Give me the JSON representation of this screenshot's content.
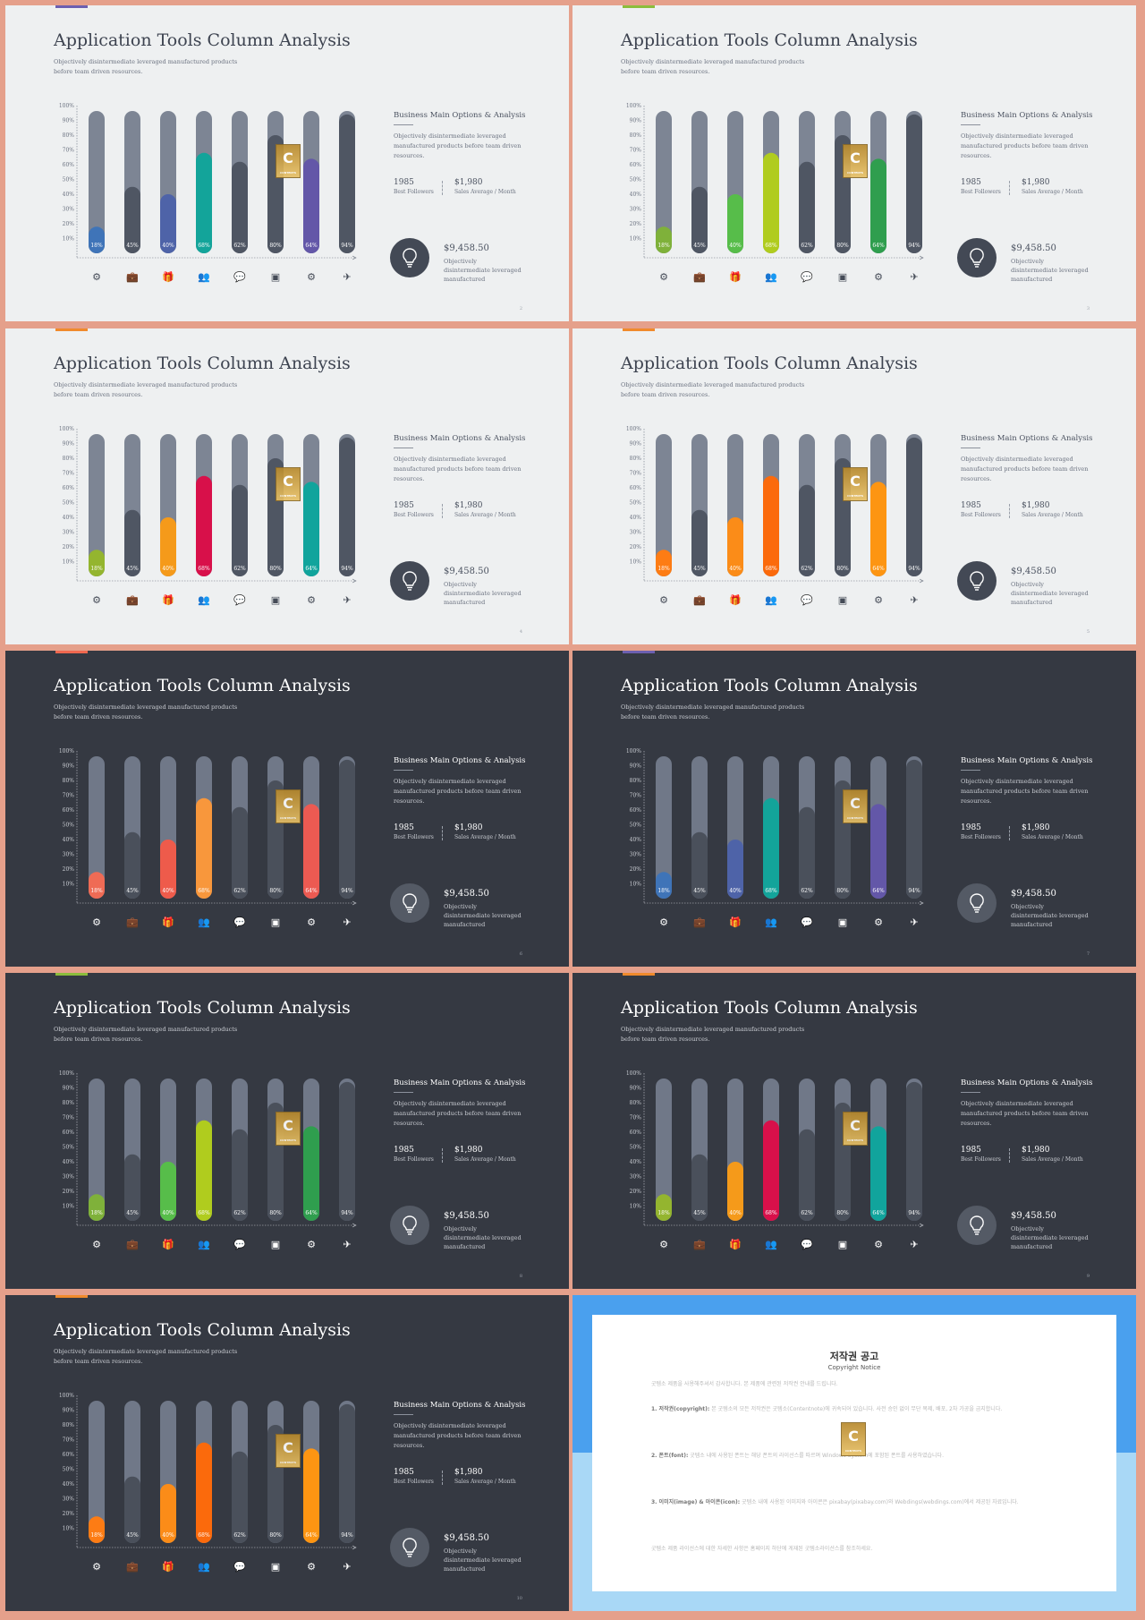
{
  "slide": {
    "title": "Application Tools Column Analysis",
    "subtitle": "Objectively disintermediate leveraged manufactured products before team driven resources.",
    "panel_title": "Business Main Options & Analysis",
    "panel_desc": "Objectively disintermediate leveraged manufactured products before team  driven resources.",
    "stat1_value": "1985",
    "stat1_label": "Best Followers",
    "stat2_value": "$1,980",
    "stat2_label": "Sales Average / Month",
    "money_value": "$9,458.50",
    "money_desc": "Objectively disintermediate leveraged manufactured",
    "watermark_letter": "C",
    "watermark_text": "CONTENTS"
  },
  "chart_data": {
    "type": "bar",
    "y_ticks": [
      "10%",
      "20%",
      "30%",
      "40%",
      "50%",
      "60%",
      "70%",
      "80%",
      "90%",
      "100%"
    ],
    "ylim": [
      0,
      100
    ],
    "categories": [
      "settings",
      "briefcase",
      "gift",
      "users",
      "comments",
      "picture",
      "gear",
      "plane"
    ],
    "values": [
      18,
      45,
      40,
      68,
      62,
      80,
      64,
      94
    ],
    "value_labels": [
      "18%",
      "45%",
      "40%",
      "68%",
      "62%",
      "80%",
      "64%",
      "94%"
    ]
  },
  "icons": [
    "cogs-icon",
    "briefcase-icon",
    "gift-icon",
    "users-icon",
    "comments-icon",
    "picture-icon",
    "gear-icon",
    "plane-icon"
  ],
  "icon_glyphs": [
    "⚙",
    "💼",
    "🎁",
    "👥",
    "💬",
    "▣",
    "⚙",
    "✈"
  ],
  "slides": [
    {
      "theme": "light",
      "accent": "#6c5fb0",
      "page": "2",
      "highlights": {
        "0": "#3f74b8",
        "2": "#4e63a8",
        "3": "#13a49a",
        "6": "#6357a8"
      }
    },
    {
      "theme": "light",
      "accent": "#8bbd3c",
      "page": "3",
      "highlights": {
        "0": "#7fb13a",
        "2": "#57bd4a",
        "3": "#b0cc1e",
        "6": "#2f9e4e"
      }
    },
    {
      "theme": "light",
      "accent": "#f08a2c",
      "page": "4",
      "highlights": {
        "0": "#94b52f",
        "2": "#f59a1a",
        "3": "#d8104a",
        "6": "#11a49c"
      }
    },
    {
      "theme": "light",
      "accent": "#f08a2c",
      "page": "5",
      "highlights": {
        "0": "#fd7c14",
        "2": "#fb8c18",
        "3": "#fb6a0c",
        "6": "#fd9512"
      }
    },
    {
      "theme": "dark",
      "accent": "#f0684f",
      "page": "6",
      "highlights": {
        "0": "#ef6b55",
        "2": "#ee5b4b",
        "3": "#f8973c",
        "6": "#ec5a52"
      }
    },
    {
      "theme": "dark",
      "accent": "#6c5fb0",
      "page": "7",
      "highlights": {
        "0": "#3f74b8",
        "2": "#4e63a8",
        "3": "#13a49a",
        "6": "#6357a8"
      }
    },
    {
      "theme": "dark",
      "accent": "#8bbd3c",
      "page": "8",
      "highlights": {
        "0": "#7fb13a",
        "2": "#57bd4a",
        "3": "#b0cc1e",
        "6": "#2f9e4e"
      }
    },
    {
      "theme": "dark",
      "accent": "#f08a2c",
      "page": "9",
      "highlights": {
        "0": "#94b52f",
        "2": "#f59a1a",
        "3": "#d8104a",
        "6": "#11a49c"
      }
    },
    {
      "theme": "dark",
      "accent": "#f08a2c",
      "page": "10",
      "highlights": {
        "0": "#fd7c14",
        "2": "#fb8c18",
        "3": "#fb6a0c",
        "6": "#fd9512"
      }
    }
  ],
  "copyright": {
    "title": "저작권 공고",
    "subtitle": "Copyright Notice",
    "intro": "굿템소 제품을 사용해주셔서 감사합니다. 본 제품에 관련된 저작권 안내를 드립니다.",
    "item1_title": "1. 저작권(copyright):",
    "item1": "본 굿템소의 모든 저작권은 굿템소(Contentnote)에 귀속되어 있습니다. 사전 승인 없이 무단 복제, 배포, 2차 가공을 금지합니다.",
    "item2_title": "2. 폰트(font):",
    "item2": "굿템소 내에 사용된 폰트는 해당 폰트의 라이선스를 따르며 Windows System에 포함된 폰트를 사용하였습니다.",
    "item3_title": "3. 이미지(image) & 아이콘(icon):",
    "item3": "굿템소 내에 사용된 이미지와 아이콘은 pixabay(pixabay.com)와 Webdings(webdings.com)에서 제공된 자료입니다.",
    "outro": "굿템소 제품 라이선스에 대한 자세한 사항은 홈페이지 하단에 게재된 굿템소라이선스를 참조하세요."
  }
}
